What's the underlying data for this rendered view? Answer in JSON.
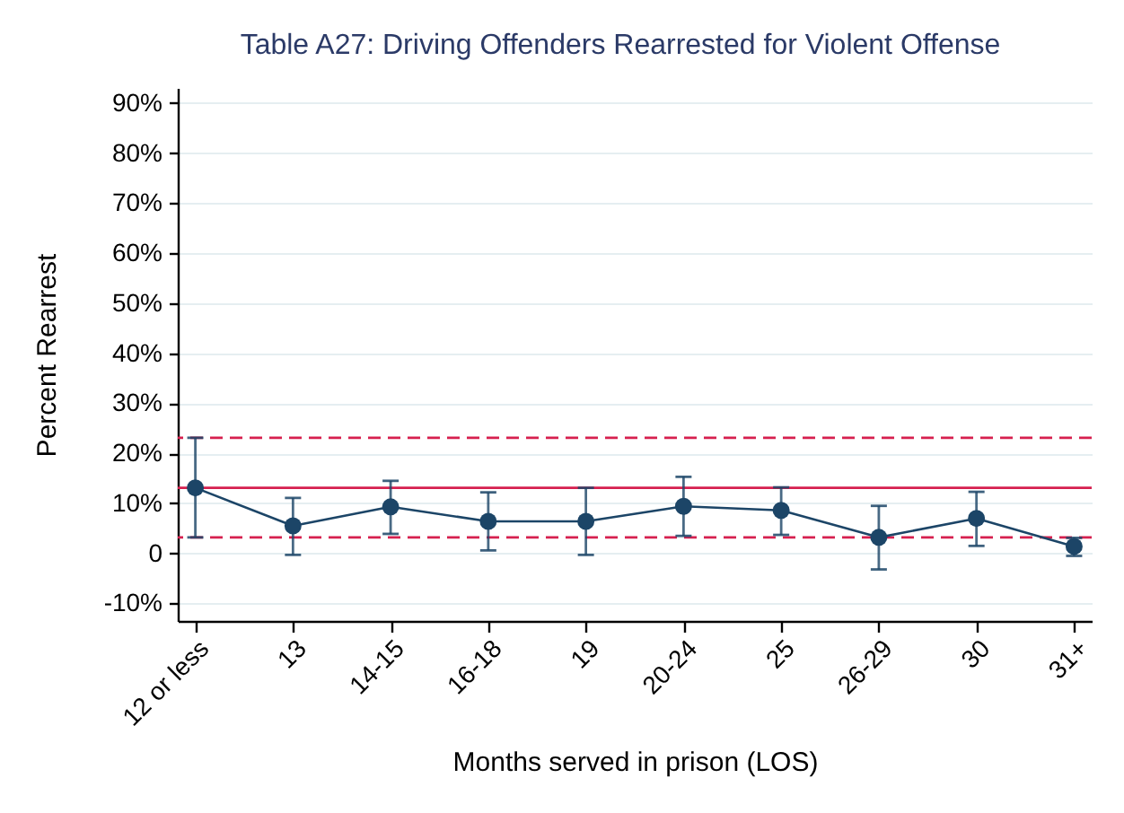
{
  "chart_data": {
    "type": "line",
    "title": "Table A27: Driving Offenders Rearrested for Violent Offense",
    "xlabel": "Months served in prison (LOS)",
    "ylabel": "Percent Rearrest",
    "categories": [
      "12 or less",
      "13",
      "14-15",
      "16-18",
      "19",
      "20-24",
      "25",
      "26-29",
      "30",
      "31+"
    ],
    "series": [
      {
        "color": "#1c4567",
        "values": [
          13.1,
          5.5,
          9.3,
          6.4,
          6.4,
          9.4,
          8.6,
          3.2,
          7.0,
          1.4
        ],
        "errors": [
          [
            3.2,
            23.1
          ],
          [
            -0.3,
            11.1
          ],
          [
            3.9,
            14.5
          ],
          [
            0.6,
            12.2
          ],
          [
            -0.3,
            13.1
          ],
          [
            3.5,
            15.3
          ],
          [
            3.7,
            13.2
          ],
          [
            -3.2,
            9.5
          ],
          [
            1.5,
            12.3
          ],
          [
            -0.5,
            3.1
          ]
        ]
      }
    ],
    "ylim": [
      -13.5,
      93
    ],
    "yticks": [
      {
        "value": -10,
        "label": "-10%"
      },
      0,
      {
        "value": 10,
        "label": "10%"
      },
      {
        "value": 20,
        "label": "20%"
      },
      {
        "value": 30,
        "label": "30%"
      },
      {
        "value": 40,
        "label": "40%"
      },
      {
        "value": 50,
        "label": "50%"
      },
      {
        "value": 60,
        "label": "60%"
      },
      {
        "value": 70,
        "label": "70%"
      },
      {
        "value": 80,
        "label": "80%"
      },
      {
        "value": 90,
        "label": "90%"
      }
    ],
    "ref_lines": [
      {
        "axis": "y",
        "value": 13.1,
        "color": "#d6204f",
        "line_style": "solid"
      },
      {
        "axis": "y",
        "value": 23.1,
        "color": "#d6204f",
        "line_style": "dashed"
      },
      {
        "axis": "y",
        "value": 3.2,
        "color": "#d6204f",
        "line_style": "dashed"
      }
    ],
    "grid": "y",
    "marker": "circle",
    "line_style": "solid"
  }
}
